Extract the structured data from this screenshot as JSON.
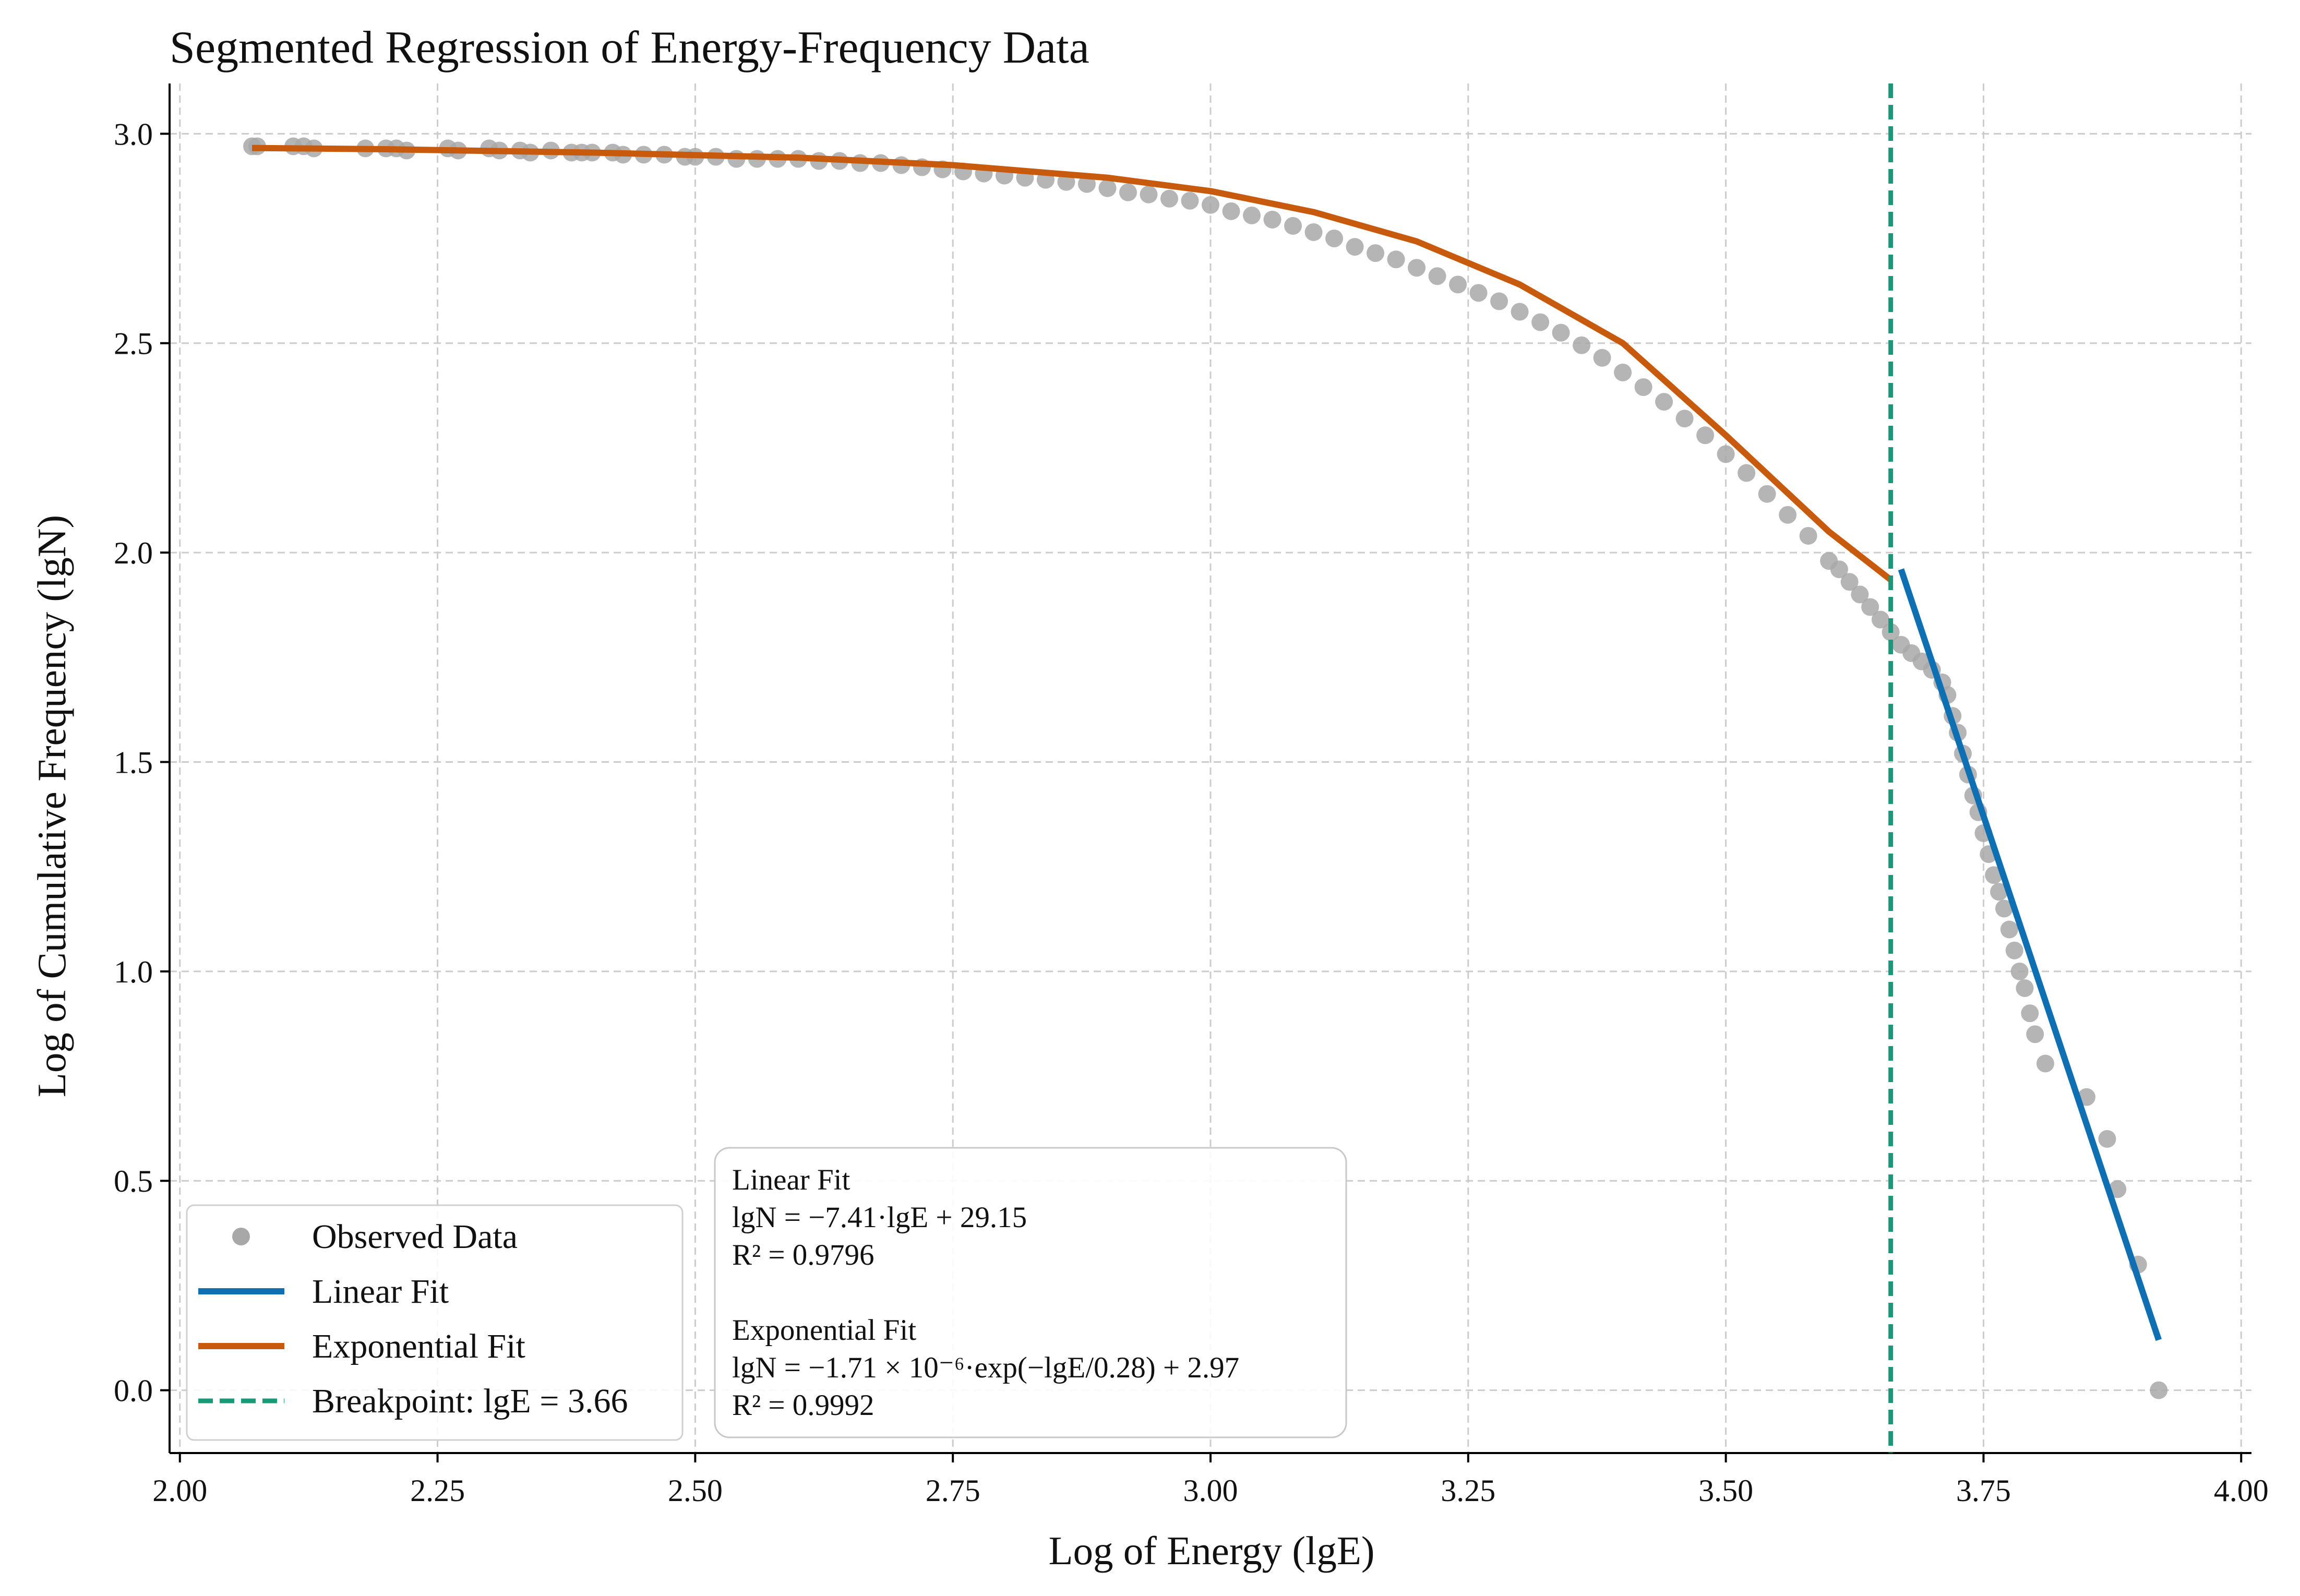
{
  "chart_data": {
    "type": "scatter",
    "title": "Segmented Regression of Energy-Frequency Data",
    "xlabel": "Log of Energy (lgE)",
    "ylabel": "Log of Cumulative Frequency (lgN)",
    "xlim": [
      1.99,
      4.01
    ],
    "ylim": [
      -0.15,
      3.12
    ],
    "xticks": [
      2.0,
      2.25,
      2.5,
      2.75,
      3.0,
      3.25,
      3.5,
      3.75,
      4.0
    ],
    "xtick_labels": [
      "2.00",
      "2.25",
      "2.50",
      "2.75",
      "3.00",
      "3.25",
      "3.50",
      "3.75",
      "4.00"
    ],
    "yticks": [
      0.0,
      0.5,
      1.0,
      1.5,
      2.0,
      2.5,
      3.0
    ],
    "ytick_labels": [
      "0.0",
      "0.5",
      "1.0",
      "1.5",
      "2.0",
      "2.5",
      "3.0"
    ],
    "grid": true,
    "legend_position": "lower-left",
    "series": [
      {
        "name": "Observed Data",
        "kind": "scatter",
        "color": "#a8a8a8",
        "x": [
          2.07,
          2.075,
          2.11,
          2.12,
          2.13,
          2.18,
          2.2,
          2.21,
          2.22,
          2.26,
          2.27,
          2.3,
          2.31,
          2.33,
          2.34,
          2.36,
          2.38,
          2.39,
          2.4,
          2.42,
          2.43,
          2.45,
          2.47,
          2.49,
          2.5,
          2.52,
          2.54,
          2.56,
          2.58,
          2.6,
          2.62,
          2.64,
          2.66,
          2.68,
          2.7,
          2.72,
          2.74,
          2.76,
          2.78,
          2.8,
          2.82,
          2.84,
          2.86,
          2.88,
          2.9,
          2.92,
          2.94,
          2.96,
          2.98,
          3.0,
          3.02,
          3.04,
          3.06,
          3.08,
          3.1,
          3.12,
          3.14,
          3.16,
          3.18,
          3.2,
          3.22,
          3.24,
          3.26,
          3.28,
          3.3,
          3.32,
          3.34,
          3.36,
          3.38,
          3.4,
          3.42,
          3.44,
          3.46,
          3.48,
          3.5,
          3.52,
          3.54,
          3.56,
          3.58,
          3.6,
          3.61,
          3.62,
          3.63,
          3.64,
          3.65,
          3.66,
          3.67,
          3.68,
          3.69,
          3.7,
          3.71,
          3.715,
          3.72,
          3.725,
          3.73,
          3.735,
          3.74,
          3.745,
          3.75,
          3.755,
          3.76,
          3.765,
          3.77,
          3.775,
          3.78,
          3.785,
          3.79,
          3.795,
          3.8,
          3.81,
          3.85,
          3.87,
          3.88,
          3.9,
          3.92
        ],
        "y": [
          2.97,
          2.97,
          2.97,
          2.97,
          2.965,
          2.965,
          2.965,
          2.965,
          2.96,
          2.965,
          2.96,
          2.965,
          2.96,
          2.96,
          2.955,
          2.96,
          2.955,
          2.955,
          2.955,
          2.955,
          2.95,
          2.95,
          2.95,
          2.945,
          2.945,
          2.945,
          2.94,
          2.94,
          2.94,
          2.94,
          2.935,
          2.935,
          2.93,
          2.93,
          2.925,
          2.92,
          2.915,
          2.91,
          2.905,
          2.9,
          2.895,
          2.89,
          2.885,
          2.88,
          2.87,
          2.86,
          2.855,
          2.845,
          2.84,
          2.83,
          2.815,
          2.805,
          2.795,
          2.78,
          2.765,
          2.75,
          2.73,
          2.715,
          2.7,
          2.68,
          2.66,
          2.64,
          2.62,
          2.6,
          2.575,
          2.55,
          2.525,
          2.495,
          2.465,
          2.43,
          2.395,
          2.36,
          2.32,
          2.28,
          2.235,
          2.19,
          2.14,
          2.09,
          2.04,
          1.98,
          1.96,
          1.93,
          1.9,
          1.87,
          1.84,
          1.81,
          1.78,
          1.76,
          1.74,
          1.72,
          1.69,
          1.66,
          1.61,
          1.57,
          1.52,
          1.47,
          1.42,
          1.38,
          1.33,
          1.28,
          1.23,
          1.19,
          1.15,
          1.1,
          1.05,
          1.0,
          0.96,
          0.9,
          0.85,
          0.78,
          0.7,
          0.6,
          0.48,
          0.3,
          0.0
        ]
      },
      {
        "name": "Linear Fit",
        "kind": "line",
        "color": "#0f6fb3",
        "x": [
          3.67,
          3.92
        ],
        "y": [
          1.96,
          0.12
        ]
      },
      {
        "name": "Exponential Fit",
        "kind": "line",
        "color": "#c85a0e",
        "x": [
          2.07,
          2.2,
          2.4,
          2.6,
          2.75,
          2.9,
          3.0,
          3.1,
          3.2,
          3.3,
          3.4,
          3.5,
          3.6,
          3.66
        ],
        "y": [
          2.966,
          2.963,
          2.955,
          2.943,
          2.925,
          2.895,
          2.863,
          2.813,
          2.743,
          2.64,
          2.5,
          2.28,
          2.05,
          1.935
        ]
      }
    ],
    "breakpoint": {
      "name": "Breakpoint: lgE = 3.66",
      "x": 3.66,
      "color": "#17997a"
    },
    "annotation": {
      "lines": [
        "Linear Fit",
        "lgN = −7.41·lgE + 29.15",
        "R² = 0.9796",
        "",
        "Exponential Fit",
        "lgN = −1.71 × 10⁻⁶·exp(−lgE/0.28) + 2.97",
        "R² = 0.9992"
      ]
    }
  }
}
